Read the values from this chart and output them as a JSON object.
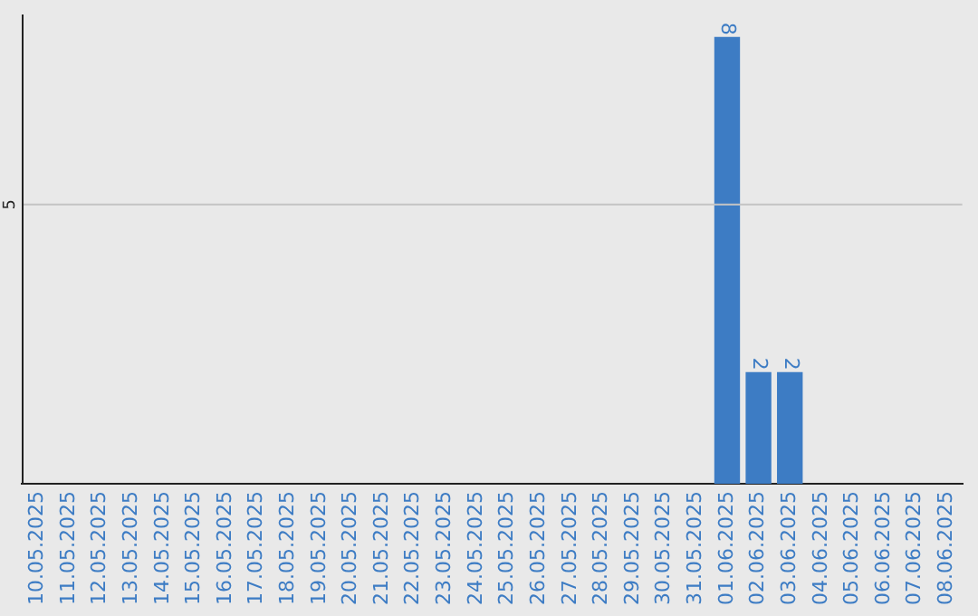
{
  "chart_data": {
    "type": "bar",
    "categories": [
      "10.05.2025",
      "11.05.2025",
      "12.05.2025",
      "13.05.2025",
      "14.05.2025",
      "15.05.2025",
      "16.05.2025",
      "17.05.2025",
      "18.05.2025",
      "19.05.2025",
      "20.05.2025",
      "21.05.2025",
      "22.05.2025",
      "23.05.2025",
      "24.05.2025",
      "25.05.2025",
      "26.05.2025",
      "27.05.2025",
      "28.05.2025",
      "29.05.2025",
      "30.05.2025",
      "31.05.2025",
      "01.06.2025",
      "02.06.2025",
      "03.06.2025",
      "04.06.2025",
      "05.06.2025",
      "06.06.2025",
      "07.06.2025",
      "08.06.2025"
    ],
    "values": [
      null,
      null,
      null,
      null,
      null,
      null,
      null,
      null,
      null,
      null,
      null,
      null,
      null,
      null,
      null,
      null,
      null,
      null,
      null,
      null,
      null,
      null,
      8,
      2,
      2,
      null,
      null,
      null,
      null,
      null
    ],
    "ylim": [
      0,
      8.4
    ],
    "value_labels": [
      null,
      null,
      null,
      null,
      null,
      null,
      null,
      null,
      null,
      null,
      null,
      null,
      null,
      null,
      null,
      null,
      null,
      null,
      null,
      null,
      null,
      null,
      "8",
      "2",
      "2",
      null,
      null,
      null,
      null,
      null
    ],
    "color": "#3d7cc4",
    "ref_lines": [
      {
        "axis": "y",
        "value": 5,
        "label": "5",
        "color": "#c4c4c4"
      }
    ],
    "legend": false
  }
}
